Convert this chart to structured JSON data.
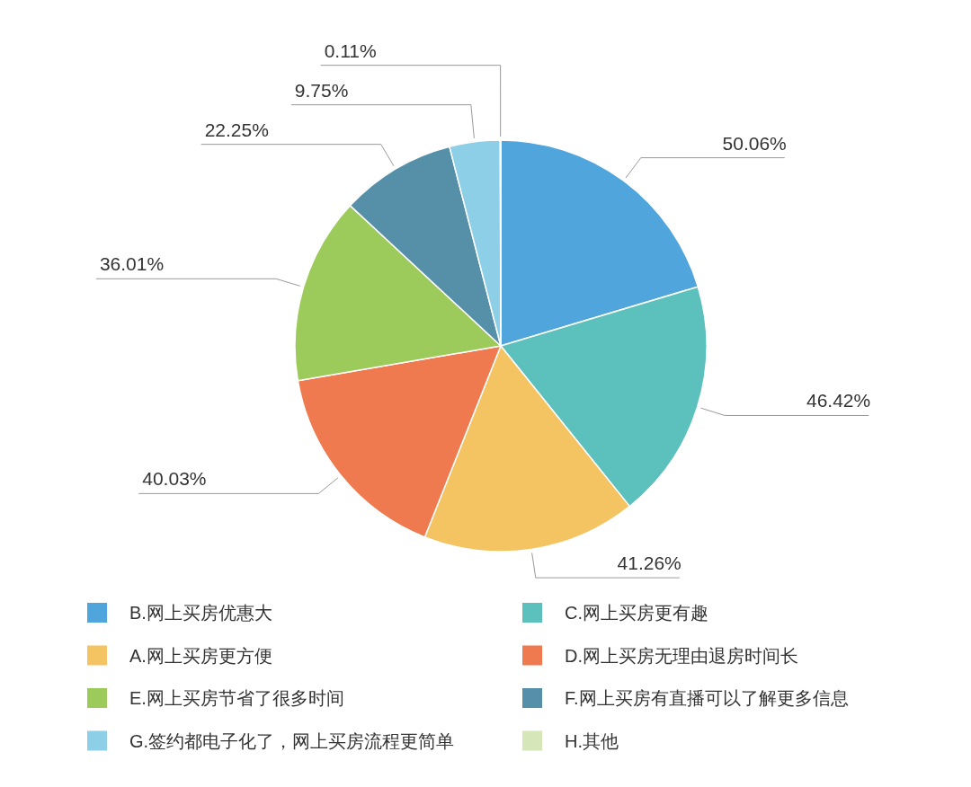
{
  "chart_data": {
    "type": "pie",
    "categories": [
      "B.网上买房优惠大",
      "C.网上买房更有趣",
      "A.网上买房更方便",
      "D.网上买房无理由退房时间长",
      "E.网上买房节省了很多时间",
      "F.网上买房有直播可以了解更多信息",
      "G.签约都电子化了，网上买房流程更简单",
      "H.其他"
    ],
    "values": [
      50.06,
      46.42,
      41.26,
      40.03,
      36.01,
      22.25,
      9.75,
      0.11
    ],
    "colors": [
      "#4fa5dc",
      "#5cc0bc",
      "#f5c462",
      "#ef7a50",
      "#9ccb5c",
      "#558fa8",
      "#8ccfe6",
      "#d5e6b9"
    ],
    "value_labels": [
      "50.06%",
      "46.42%",
      "41.26%",
      "40.03%",
      "36.01%",
      "22.25%",
      "9.75%",
      "0.11%"
    ],
    "legend": "bottom"
  }
}
